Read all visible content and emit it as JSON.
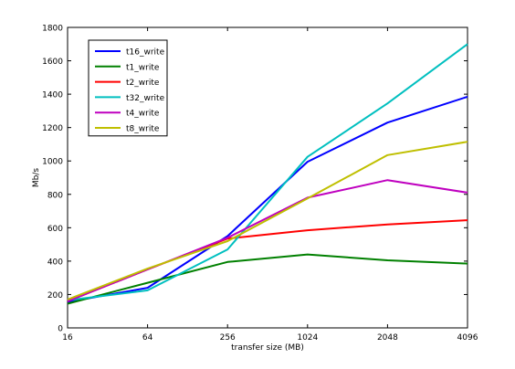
{
  "chart_data": {
    "type": "line",
    "title": "",
    "xlabel": "transfer size (MB)",
    "ylabel": "Mb/s",
    "x": [
      "16",
      "64",
      "256",
      "1024",
      "2048",
      "4096"
    ],
    "ylim": [
      0,
      1800
    ],
    "yticks": [
      "0",
      "200",
      "400",
      "600",
      "800",
      "1000",
      "1200",
      "1400",
      "1600",
      "1800"
    ],
    "grid": false,
    "legend_position": "upper-left",
    "series": [
      {
        "name": "t16_write",
        "color": "#0000ff",
        "values": [
          155,
          240,
          550,
          995,
          1230,
          1385
        ]
      },
      {
        "name": "t1_write",
        "color": "#008000",
        "values": [
          145,
          270,
          395,
          440,
          405,
          385
        ]
      },
      {
        "name": "t2_write",
        "color": "#ff0000",
        "values": [
          160,
          350,
          535,
          585,
          620,
          645
        ]
      },
      {
        "name": "t32_write",
        "color": "#00bfbf",
        "values": [
          165,
          225,
          470,
          1025,
          1345,
          1700
        ]
      },
      {
        "name": "t4_write",
        "color": "#bf00bf",
        "values": [
          160,
          350,
          540,
          780,
          885,
          810
        ]
      },
      {
        "name": "t8_write",
        "color": "#bfbf00",
        "values": [
          170,
          355,
          520,
          775,
          1035,
          1115
        ]
      }
    ]
  }
}
